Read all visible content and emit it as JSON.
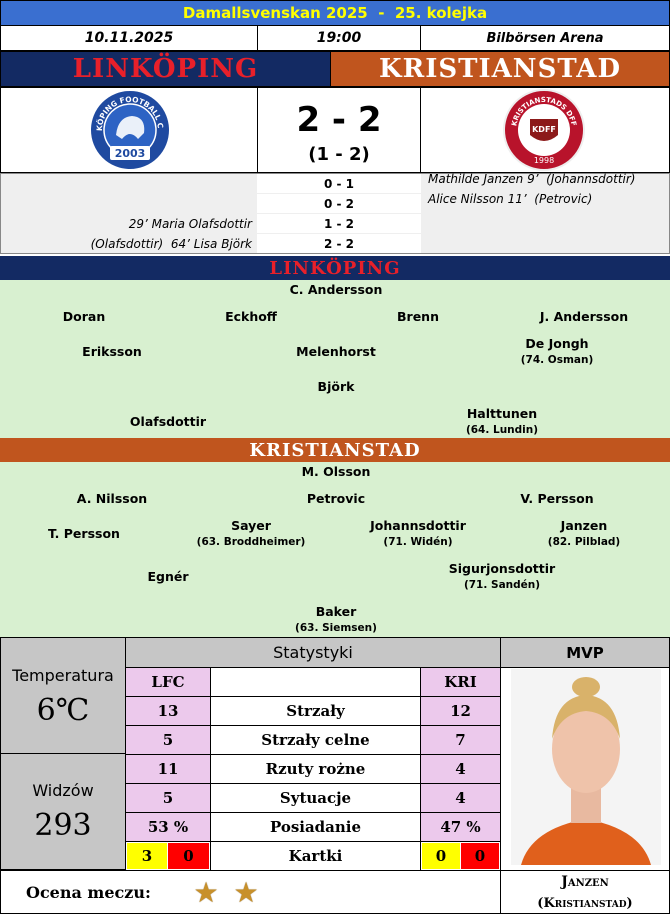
{
  "header": {
    "title": "Damallsvenskan 2025  -  25. kolejka",
    "date": "10.11.2025",
    "time": "19:00",
    "venue": "Bilbörsen Arena"
  },
  "teams": {
    "home": "LINKÖPING",
    "away": "KRISTIANSTAD"
  },
  "logos": {
    "home_ring": "LINKÖPING FOOTBALL CLUB",
    "home_year": "2003",
    "away_ring": "KRISTIANSTADS DFF",
    "away_badge": "KDFF",
    "away_year": "1998"
  },
  "score": {
    "full": "2 - 2",
    "half": "(1 - 2)"
  },
  "goals": [
    {
      "score": "0 - 1",
      "away": "Mathilde Janzen 9’  (Johannsdottir)"
    },
    {
      "score": "0 - 2",
      "away": "Alice Nilsson 11’  (Petrovic)"
    },
    {
      "score": "1 - 2",
      "home": "29’ Maria Olafsdottir"
    },
    {
      "score": "2 - 2",
      "home": "(Olafsdottir)  64’ Lisa Björk"
    }
  ],
  "lineups": {
    "home": [
      {
        "name": "C. Andersson"
      },
      {
        "name": "Doran"
      },
      {
        "name": "Eckhoff"
      },
      {
        "name": "Brenn"
      },
      {
        "name": "J. Andersson"
      },
      {
        "name": "Eriksson"
      },
      {
        "name": "Melenhorst"
      },
      {
        "name": "De Jongh",
        "sub": "(74. Osman)"
      },
      {
        "name": "Björk"
      },
      {
        "name": "Olafsdottir"
      },
      {
        "name": "Halttunen",
        "sub": "(64. Lundin)"
      }
    ],
    "away": [
      {
        "name": "M. Olsson"
      },
      {
        "name": "A. Nilsson"
      },
      {
        "name": "Petrovic"
      },
      {
        "name": "V. Persson"
      },
      {
        "name": "T. Persson"
      },
      {
        "name": "Sayer",
        "sub": "(63. Broddheimer)"
      },
      {
        "name": "Johannsdottir",
        "sub": "(71. Widén)"
      },
      {
        "name": "Janzen",
        "sub": "(82. Pilblad)"
      },
      {
        "name": "Egnér"
      },
      {
        "name": "Sigurjonsdottir",
        "sub": "(71. Sandén)"
      },
      {
        "name": "Baker",
        "sub": "(63. Siemsen)"
      }
    ]
  },
  "info": {
    "temperature_label": "Temperatura",
    "temperature": "6℃",
    "attendance_label": "Widzów",
    "attendance": 293
  },
  "stats": {
    "title": "Statystyki",
    "home_abbr": "LFC",
    "away_abbr": "KRI",
    "rows": [
      {
        "label": "Strzały",
        "home": 13,
        "away": 12
      },
      {
        "label": "Strzały celne",
        "home": 5,
        "away": 7
      },
      {
        "label": "Rzuty rożne",
        "home": 11,
        "away": 4
      },
      {
        "label": "Sytuacje",
        "home": 5,
        "away": 4
      },
      {
        "label": "Posiadanie",
        "home": "53 %",
        "away": "47 %"
      }
    ],
    "cards": {
      "label": "Kartki",
      "home_yellow": 3,
      "home_red": 0,
      "away_yellow": 0,
      "away_red": 0
    }
  },
  "mvp": {
    "title": "MVP",
    "name": "Janzen",
    "team": "(Kristianstad)"
  },
  "rating": {
    "label": "Ocena meczu:",
    "stars": 2
  }
}
